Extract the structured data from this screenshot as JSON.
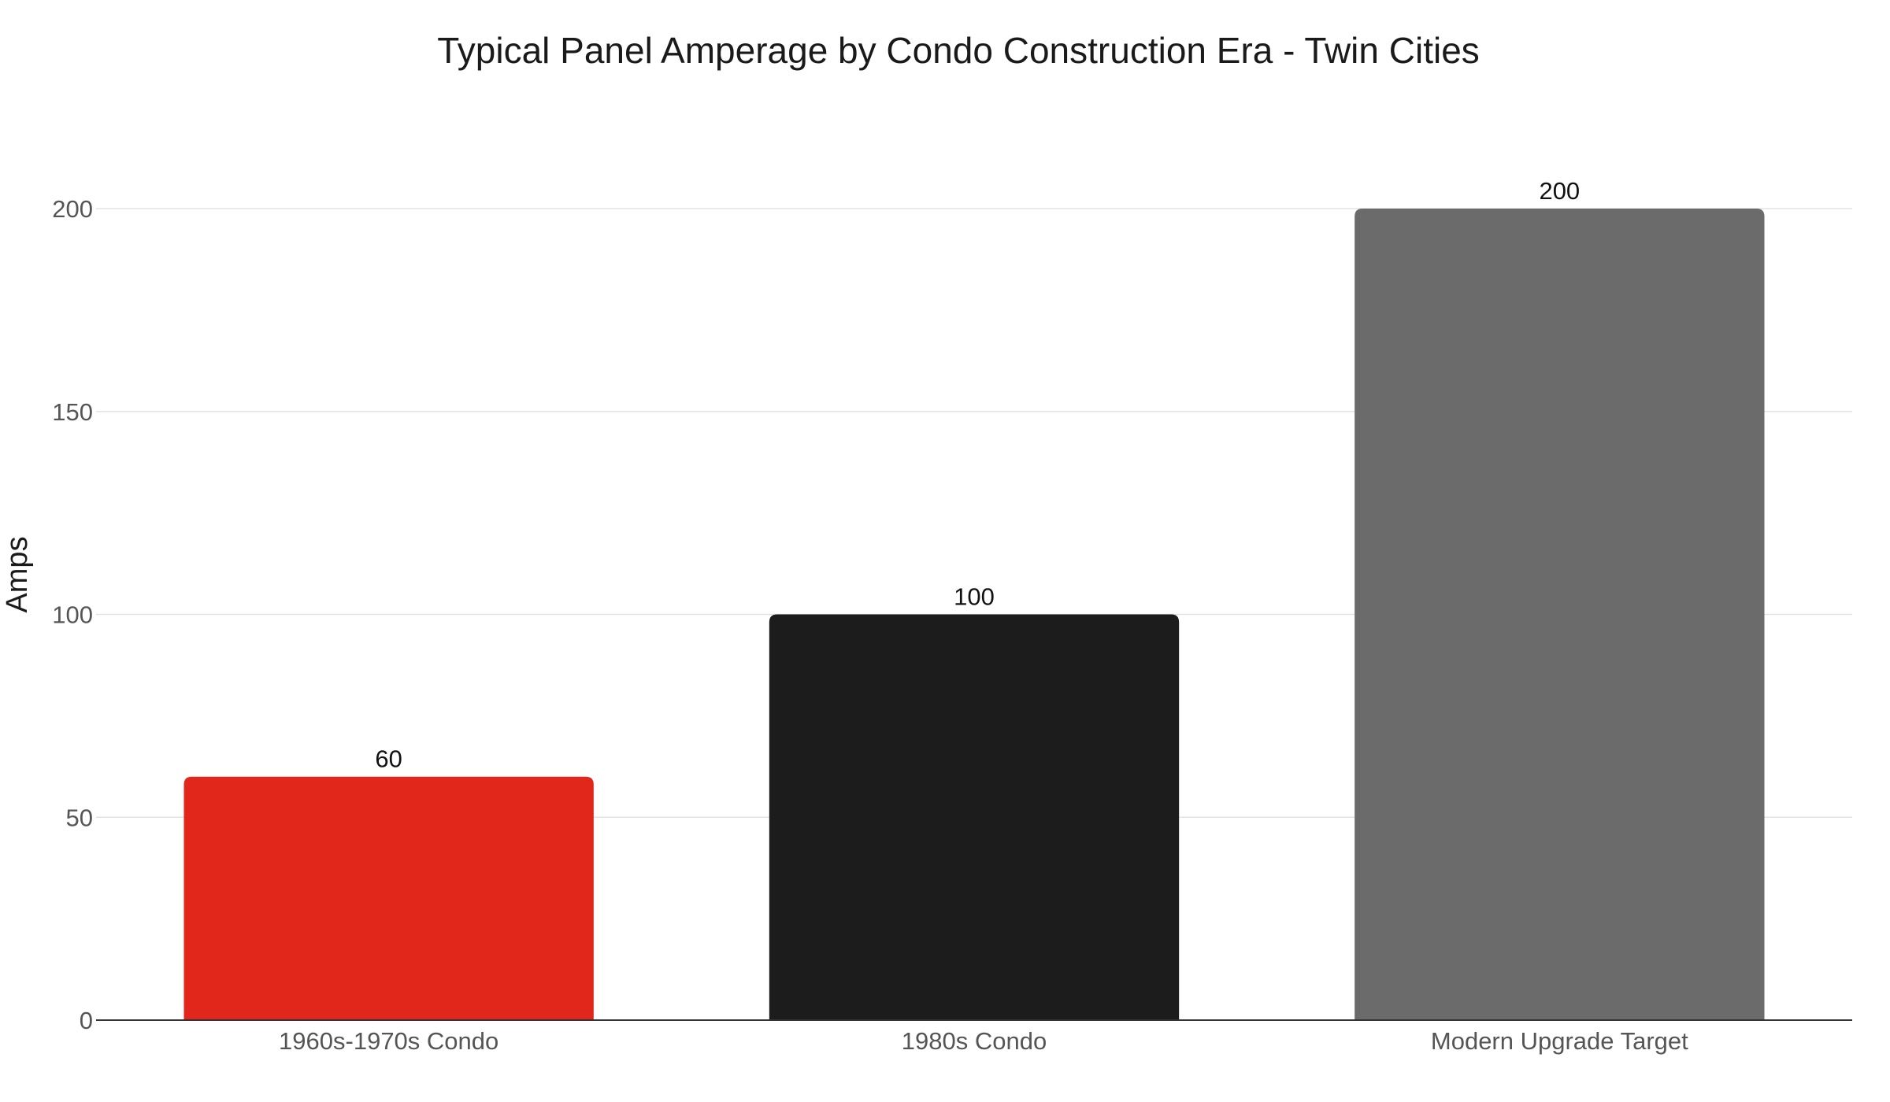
{
  "chart_data": {
    "type": "bar",
    "title": "Typical Panel Amperage by Condo Construction Era - Twin Cities",
    "xlabel": "",
    "ylabel": "Amps",
    "categories": [
      "1960s-1970s Condo",
      "1980s Condo",
      "Modern Upgrade Target"
    ],
    "values": [
      60,
      100,
      200
    ],
    "data_labels": [
      "60",
      "100",
      "200"
    ],
    "bar_colors": [
      "#e1261c",
      "#1c1c1c",
      "#6b6b6b"
    ],
    "ylim": [
      0,
      200
    ],
    "yticks": [
      0,
      50,
      100,
      150,
      200
    ],
    "ytick_labels": [
      "0",
      "50",
      "100",
      "150",
      "200"
    ],
    "grid": true,
    "legend": "none"
  }
}
